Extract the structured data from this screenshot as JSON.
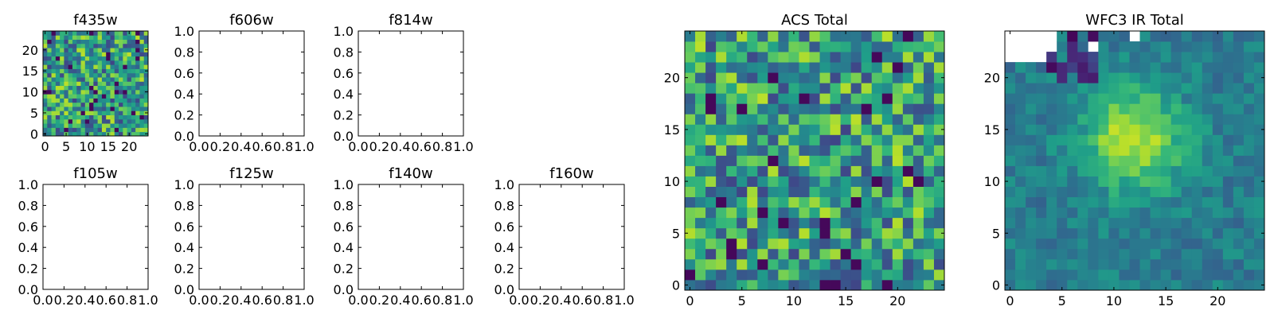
{
  "colors": {
    "background": "#ffffff",
    "axes": "#000000",
    "colormap": "viridis"
  },
  "chart_data": [
    {
      "type": "heatmap",
      "title": "f435w",
      "xticks": [
        "0",
        "5",
        "10",
        "15",
        "20"
      ],
      "yticks": [
        "0",
        "5",
        "10",
        "15",
        "20"
      ],
      "xlim": [
        -0.5,
        24.5
      ],
      "ylim": [
        -0.5,
        24.5
      ],
      "grid": false,
      "has_image": true,
      "pattern": "noise",
      "seed": 11
    },
    {
      "type": "heatmap",
      "title": "f606w",
      "xticks": [
        "0.0",
        "0.2",
        "0.4",
        "0.6",
        "0.8",
        "1.0"
      ],
      "yticks": [
        "0.0",
        "0.2",
        "0.4",
        "0.6",
        "0.8",
        "1.0"
      ],
      "xlim": [
        0,
        1
      ],
      "ylim": [
        0,
        1
      ],
      "grid": false,
      "has_image": false
    },
    {
      "type": "heatmap",
      "title": "f814w",
      "xticks": [
        "0.0",
        "0.2",
        "0.4",
        "0.6",
        "0.8",
        "1.0"
      ],
      "yticks": [
        "0.0",
        "0.2",
        "0.4",
        "0.6",
        "0.8",
        "1.0"
      ],
      "xlim": [
        0,
        1
      ],
      "ylim": [
        0,
        1
      ],
      "grid": false,
      "has_image": false
    },
    {
      "type": "heatmap",
      "title": "f105w",
      "xticks": [
        "0.0",
        "0.2",
        "0.4",
        "0.6",
        "0.8",
        "1.0"
      ],
      "yticks": [
        "0.0",
        "0.2",
        "0.4",
        "0.6",
        "0.8",
        "1.0"
      ],
      "xlim": [
        0,
        1
      ],
      "ylim": [
        0,
        1
      ],
      "grid": false,
      "has_image": false
    },
    {
      "type": "heatmap",
      "title": "f125w",
      "xticks": [
        "0.0",
        "0.2",
        "0.4",
        "0.6",
        "0.8",
        "1.0"
      ],
      "yticks": [
        "0.0",
        "0.2",
        "0.4",
        "0.6",
        "0.8",
        "1.0"
      ],
      "xlim": [
        0,
        1
      ],
      "ylim": [
        0,
        1
      ],
      "grid": false,
      "has_image": false
    },
    {
      "type": "heatmap",
      "title": "f140w",
      "xticks": [
        "0.0",
        "0.2",
        "0.4",
        "0.6",
        "0.8",
        "1.0"
      ],
      "yticks": [
        "0.0",
        "0.2",
        "0.4",
        "0.6",
        "0.8",
        "1.0"
      ],
      "xlim": [
        0,
        1
      ],
      "ylim": [
        0,
        1
      ],
      "grid": false,
      "has_image": false
    },
    {
      "type": "heatmap",
      "title": "f160w",
      "xticks": [
        "0.0",
        "0.2",
        "0.4",
        "0.6",
        "0.8",
        "1.0"
      ],
      "yticks": [
        "0.0",
        "0.2",
        "0.4",
        "0.6",
        "0.8",
        "1.0"
      ],
      "xlim": [
        0,
        1
      ],
      "ylim": [
        0,
        1
      ],
      "grid": false,
      "has_image": false
    },
    {
      "type": "heatmap",
      "title": "ACS Total",
      "xticks": [
        "0",
        "5",
        "10",
        "15",
        "20"
      ],
      "yticks": [
        "0",
        "5",
        "10",
        "15",
        "20"
      ],
      "xlim": [
        -0.5,
        24.5
      ],
      "ylim": [
        -0.5,
        24.5
      ],
      "grid": false,
      "has_image": true,
      "pattern": "noise",
      "seed": 37
    },
    {
      "type": "heatmap",
      "title": "WFC3 IR Total",
      "xticks": [
        "0",
        "5",
        "10",
        "15",
        "20"
      ],
      "yticks": [
        "0",
        "5",
        "10",
        "15",
        "20"
      ],
      "xlim": [
        -0.5,
        24.5
      ],
      "ylim": [
        -0.5,
        24.5
      ],
      "grid": false,
      "has_image": true,
      "pattern": "source",
      "seed": 73,
      "source_center": [
        12,
        14
      ],
      "masked_cells": [
        [
          0,
          24
        ],
        [
          1,
          24
        ],
        [
          2,
          24
        ],
        [
          3,
          24
        ],
        [
          4,
          24
        ],
        [
          0,
          23
        ],
        [
          1,
          23
        ],
        [
          2,
          23
        ],
        [
          3,
          23
        ],
        [
          4,
          23
        ],
        [
          0,
          22
        ],
        [
          1,
          22
        ],
        [
          2,
          22
        ],
        [
          3,
          22
        ],
        [
          8,
          23
        ],
        [
          12,
          24
        ]
      ]
    }
  ]
}
